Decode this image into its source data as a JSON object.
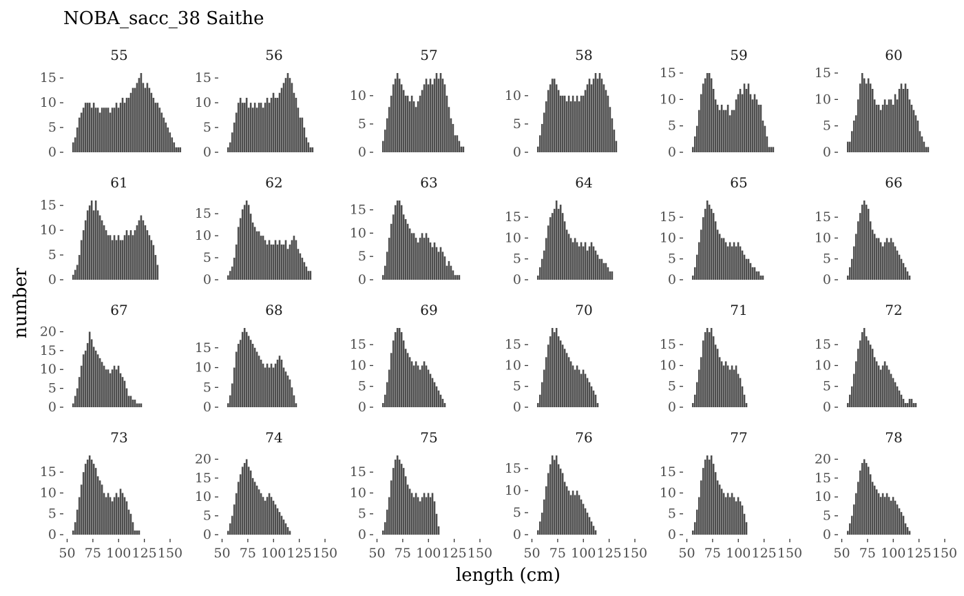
{
  "chart_data": {
    "type": "bar",
    "title": "NOBA_sacc_38 Saithe",
    "xlabel": "length (cm)",
    "ylabel": "number",
    "bar_color": "#4d4d4d",
    "x_ticks": [
      50,
      75,
      100,
      125,
      150
    ],
    "xlim": [
      49,
      152
    ],
    "panels": [
      {
        "label": "55",
        "ylim": [
          0,
          16
        ],
        "y_ticks": [
          0,
          5,
          10,
          15
        ],
        "x_start": 55,
        "values": [
          2,
          3,
          5,
          7,
          8,
          9,
          10,
          10,
          10,
          9,
          10,
          9,
          9,
          8,
          9,
          9,
          9,
          9,
          8,
          9,
          9,
          10,
          9,
          10,
          11,
          10,
          11,
          11,
          12,
          13,
          13,
          14,
          15,
          16,
          14,
          13,
          14,
          13,
          12,
          11,
          10,
          10,
          9,
          8,
          7,
          6,
          5,
          4,
          3,
          2,
          1,
          1,
          1
        ]
      },
      {
        "label": "56",
        "ylim": [
          0,
          16
        ],
        "y_ticks": [
          0,
          5,
          10,
          15
        ],
        "x_start": 55,
        "values": [
          1,
          2,
          4,
          6,
          8,
          10,
          11,
          10,
          10,
          11,
          9,
          10,
          9,
          10,
          9,
          10,
          10,
          9,
          10,
          11,
          10,
          11,
          12,
          11,
          11,
          12,
          13,
          14,
          15,
          16,
          15,
          14,
          12,
          11,
          9,
          7,
          7,
          5,
          3,
          2,
          1,
          1
        ]
      },
      {
        "label": "57",
        "ylim": [
          0,
          14
        ],
        "y_ticks": [
          0,
          5,
          10
        ],
        "x_start": 55,
        "values": [
          2,
          4,
          6,
          8,
          10,
          12,
          13,
          14,
          13,
          12,
          11,
          10,
          10,
          9,
          10,
          9,
          8,
          9,
          10,
          11,
          12,
          13,
          12,
          13,
          12,
          13,
          14,
          13,
          14,
          13,
          12,
          10,
          8,
          6,
          5,
          3,
          3,
          2,
          1,
          1
        ]
      },
      {
        "label": "58",
        "ylim": [
          0,
          14
        ],
        "y_ticks": [
          0,
          5,
          10
        ],
        "x_start": 55,
        "values": [
          1,
          3,
          5,
          7,
          9,
          11,
          12,
          13,
          13,
          12,
          11,
          10,
          10,
          10,
          9,
          10,
          9,
          10,
          9,
          10,
          9,
          10,
          10,
          11,
          12,
          13,
          12,
          13,
          14,
          13,
          14,
          13,
          12,
          11,
          10,
          8,
          6,
          4,
          2
        ]
      },
      {
        "label": "59",
        "ylim": [
          0,
          15
        ],
        "y_ticks": [
          0,
          5,
          10,
          15
        ],
        "x_start": 55,
        "values": [
          1,
          3,
          5,
          8,
          11,
          13,
          14,
          15,
          15,
          14,
          12,
          10,
          9,
          8,
          9,
          8,
          8,
          9,
          7,
          8,
          8,
          10,
          11,
          12,
          11,
          13,
          12,
          13,
          11,
          10,
          11,
          10,
          9,
          9,
          6,
          5,
          3,
          1,
          1,
          1
        ]
      },
      {
        "label": "60",
        "ylim": [
          0,
          15
        ],
        "y_ticks": [
          0,
          5,
          10,
          15
        ],
        "x_start": 55,
        "values": [
          2,
          2,
          4,
          6,
          7,
          10,
          13,
          15,
          14,
          13,
          14,
          13,
          12,
          10,
          9,
          9,
          8,
          9,
          10,
          9,
          10,
          10,
          9,
          11,
          10,
          12,
          13,
          12,
          13,
          12,
          10,
          9,
          8,
          7,
          6,
          4,
          3,
          2,
          1,
          1
        ]
      },
      {
        "label": "61",
        "ylim": [
          0,
          16
        ],
        "y_ticks": [
          0,
          5,
          10,
          15
        ],
        "x_start": 55,
        "values": [
          1,
          2,
          3,
          5,
          8,
          10,
          12,
          14,
          15,
          16,
          14,
          16,
          14,
          13,
          12,
          11,
          10,
          9,
          9,
          8,
          9,
          8,
          9,
          8,
          8,
          9,
          10,
          9,
          10,
          9,
          10,
          11,
          12,
          13,
          12,
          11,
          10,
          9,
          8,
          7,
          5,
          3
        ]
      },
      {
        "label": "62",
        "ylim": [
          0,
          18
        ],
        "y_ticks": [
          0,
          5,
          10,
          15
        ],
        "x_start": 55,
        "values": [
          1,
          2,
          3,
          5,
          8,
          12,
          14,
          16,
          17,
          18,
          17,
          15,
          13,
          12,
          11,
          11,
          10,
          10,
          9,
          8,
          9,
          8,
          8,
          9,
          8,
          9,
          8,
          8,
          9,
          7,
          8,
          9,
          10,
          9,
          7,
          6,
          5,
          4,
          3,
          2,
          2
        ]
      },
      {
        "label": "63",
        "ylim": [
          0,
          17
        ],
        "y_ticks": [
          0,
          5,
          10,
          15
        ],
        "x_start": 55,
        "values": [
          1,
          3,
          6,
          9,
          12,
          14,
          16,
          17,
          17,
          16,
          14,
          13,
          12,
          11,
          10,
          10,
          9,
          8,
          9,
          10,
          9,
          10,
          9,
          8,
          7,
          8,
          7,
          6,
          7,
          6,
          5,
          3,
          4,
          3,
          2,
          1,
          1,
          1
        ]
      },
      {
        "label": "64",
        "ylim": [
          0,
          19
        ],
        "y_ticks": [
          0,
          5,
          10,
          15
        ],
        "x_start": 55,
        "values": [
          1,
          3,
          5,
          7,
          10,
          13,
          15,
          16,
          17,
          19,
          17,
          18,
          16,
          14,
          12,
          11,
          10,
          9,
          10,
          9,
          8,
          9,
          8,
          9,
          7,
          8,
          9,
          8,
          7,
          6,
          5,
          5,
          4,
          4,
          3,
          2,
          2
        ]
      },
      {
        "label": "65",
        "ylim": [
          0,
          19
        ],
        "y_ticks": [
          0,
          5,
          10,
          15
        ],
        "x_start": 55,
        "values": [
          1,
          3,
          6,
          9,
          12,
          15,
          17,
          19,
          18,
          17,
          16,
          14,
          12,
          11,
          10,
          10,
          9,
          8,
          9,
          8,
          9,
          8,
          9,
          8,
          7,
          6,
          5,
          5,
          4,
          3,
          3,
          2,
          2,
          1,
          1
        ]
      },
      {
        "label": "66",
        "ylim": [
          0,
          19
        ],
        "y_ticks": [
          0,
          5,
          10,
          15
        ],
        "x_start": 55,
        "values": [
          1,
          3,
          5,
          8,
          11,
          14,
          16,
          18,
          19,
          18,
          17,
          14,
          12,
          11,
          10,
          10,
          9,
          8,
          9,
          10,
          9,
          10,
          9,
          8,
          7,
          6,
          5,
          4,
          3,
          2,
          1
        ]
      },
      {
        "label": "67",
        "ylim": [
          0,
          21
        ],
        "y_ticks": [
          0,
          5,
          10,
          15,
          20
        ],
        "x_start": 55,
        "values": [
          1,
          3,
          5,
          8,
          11,
          14,
          15,
          17,
          20,
          18,
          16,
          15,
          14,
          13,
          12,
          11,
          10,
          10,
          9,
          10,
          11,
          10,
          11,
          9,
          8,
          7,
          5,
          3,
          3,
          2,
          2,
          1,
          1,
          1
        ]
      },
      {
        "label": "68",
        "ylim": [
          0,
          20
        ],
        "y_ticks": [
          0,
          5,
          10,
          15
        ],
        "x_start": 55,
        "values": [
          1,
          3,
          6,
          10,
          14,
          16,
          17,
          19,
          20,
          19,
          18,
          17,
          16,
          15,
          14,
          13,
          12,
          11,
          10,
          11,
          10,
          11,
          10,
          11,
          12,
          13,
          12,
          10,
          9,
          8,
          7,
          5,
          3,
          1
        ]
      },
      {
        "label": "69",
        "ylim": [
          0,
          19
        ],
        "y_ticks": [
          0,
          5,
          10,
          15
        ],
        "x_start": 55,
        "values": [
          1,
          3,
          6,
          9,
          13,
          16,
          18,
          19,
          19,
          18,
          16,
          14,
          13,
          12,
          11,
          10,
          11,
          10,
          9,
          10,
          11,
          10,
          9,
          8,
          7,
          6,
          5,
          4,
          3,
          2,
          1
        ]
      },
      {
        "label": "70",
        "ylim": [
          0,
          19
        ],
        "y_ticks": [
          0,
          5,
          10,
          15
        ],
        "x_start": 55,
        "values": [
          1,
          3,
          6,
          9,
          12,
          15,
          17,
          19,
          18,
          19,
          17,
          16,
          15,
          14,
          13,
          12,
          11,
          10,
          9,
          10,
          9,
          8,
          9,
          8,
          7,
          6,
          5,
          4,
          3,
          1
        ]
      },
      {
        "label": "71",
        "ylim": [
          0,
          19
        ],
        "y_ticks": [
          0,
          5,
          10,
          15
        ],
        "x_start": 55,
        "values": [
          1,
          3,
          6,
          9,
          12,
          16,
          18,
          19,
          18,
          19,
          17,
          15,
          14,
          12,
          11,
          10,
          11,
          10,
          9,
          10,
          9,
          10,
          8,
          7,
          5,
          3,
          1
        ]
      },
      {
        "label": "72",
        "ylim": [
          0,
          19
        ],
        "y_ticks": [
          0,
          5,
          10,
          15
        ],
        "x_start": 55,
        "values": [
          1,
          3,
          5,
          8,
          11,
          14,
          16,
          18,
          19,
          17,
          16,
          15,
          14,
          12,
          11,
          10,
          9,
          10,
          11,
          10,
          9,
          8,
          7,
          6,
          5,
          4,
          3,
          2,
          1,
          1,
          2,
          2,
          1,
          1
        ]
      },
      {
        "label": "73",
        "ylim": [
          0,
          19
        ],
        "y_ticks": [
          0,
          5,
          10,
          15
        ],
        "x_start": 55,
        "values": [
          1,
          3,
          6,
          9,
          12,
          15,
          17,
          18,
          19,
          18,
          17,
          16,
          14,
          13,
          12,
          10,
          9,
          10,
          9,
          8,
          9,
          10,
          9,
          11,
          10,
          9,
          8,
          6,
          5,
          3,
          1,
          1,
          1
        ]
      },
      {
        "label": "74",
        "ylim": [
          0,
          21
        ],
        "y_ticks": [
          0,
          5,
          10,
          15,
          20
        ],
        "x_start": 55,
        "values": [
          1,
          3,
          5,
          8,
          11,
          14,
          16,
          18,
          19,
          20,
          18,
          17,
          15,
          14,
          13,
          12,
          11,
          10,
          9,
          10,
          11,
          10,
          9,
          8,
          7,
          6,
          5,
          4,
          3,
          2,
          1
        ]
      },
      {
        "label": "75",
        "ylim": [
          0,
          19
        ],
        "y_ticks": [
          0,
          5,
          10,
          15
        ],
        "x_start": 55,
        "values": [
          1,
          3,
          6,
          9,
          13,
          16,
          18,
          19,
          18,
          17,
          16,
          14,
          12,
          11,
          10,
          9,
          10,
          9,
          8,
          9,
          10,
          9,
          10,
          9,
          10,
          8,
          5,
          2
        ]
      },
      {
        "label": "76",
        "ylim": [
          0,
          18
        ],
        "y_ticks": [
          0,
          5,
          10,
          15
        ],
        "x_start": 55,
        "values": [
          1,
          3,
          5,
          8,
          11,
          14,
          16,
          18,
          17,
          18,
          16,
          15,
          14,
          12,
          11,
          10,
          9,
          10,
          9,
          10,
          9,
          8,
          7,
          6,
          5,
          4,
          3,
          2,
          1
        ]
      },
      {
        "label": "77",
        "ylim": [
          0,
          19
        ],
        "y_ticks": [
          0,
          5,
          10,
          15
        ],
        "x_start": 55,
        "values": [
          1,
          3,
          6,
          9,
          13,
          16,
          18,
          19,
          18,
          19,
          17,
          15,
          13,
          12,
          11,
          10,
          9,
          10,
          9,
          10,
          9,
          8,
          9,
          8,
          7,
          5,
          3
        ]
      },
      {
        "label": "78",
        "ylim": [
          0,
          21
        ],
        "y_ticks": [
          0,
          5,
          10,
          15,
          20
        ],
        "x_start": 55,
        "values": [
          1,
          3,
          5,
          8,
          11,
          14,
          17,
          19,
          20,
          19,
          18,
          16,
          14,
          13,
          12,
          11,
          10,
          11,
          10,
          11,
          10,
          9,
          10,
          9,
          8,
          7,
          6,
          5,
          3,
          2,
          1
        ]
      }
    ]
  }
}
